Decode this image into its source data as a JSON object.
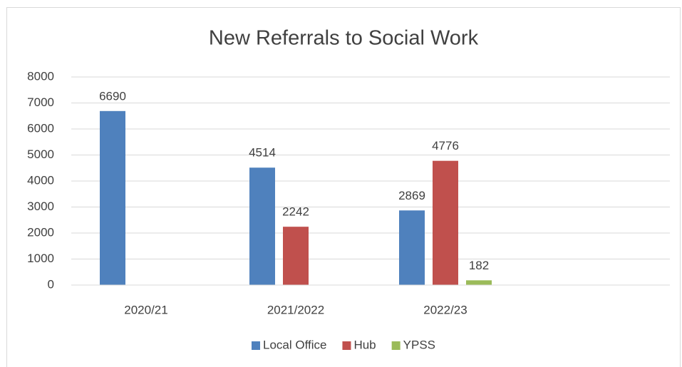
{
  "chart_data": {
    "type": "bar",
    "title": "New Referrals to Social Work",
    "categories": [
      "2020/21",
      "2021/2022",
      "2022/23",
      null
    ],
    "series": [
      {
        "name": "Local Office",
        "color": "#4f81bd",
        "values": [
          6690,
          4514,
          2869,
          null
        ]
      },
      {
        "name": "Hub",
        "color": "#c0504d",
        "values": [
          null,
          2242,
          4776,
          null
        ]
      },
      {
        "name": "YPSS",
        "color": "#9bbb59",
        "values": [
          null,
          null,
          182,
          null
        ]
      }
    ],
    "ylim": [
      0,
      8000
    ],
    "yticks": [
      0,
      1000,
      2000,
      3000,
      4000,
      5000,
      6000,
      7000,
      8000
    ],
    "grid": true,
    "legend": "bottom"
  }
}
